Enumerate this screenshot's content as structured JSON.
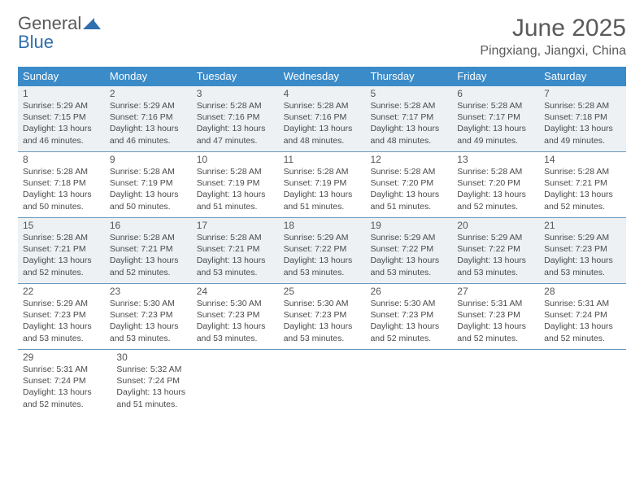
{
  "logo": {
    "text1": "General",
    "text2": "Blue"
  },
  "title": "June 2025",
  "location": "Pingxiang, Jiangxi, China",
  "colors": {
    "header_bg": "#3b8bc8",
    "row_border": "#6a99bd",
    "shaded_bg": "#edf1f4",
    "text_gray": "#5a5a5a",
    "logo_blue": "#2f6fae"
  },
  "day_labels": [
    "Sunday",
    "Monday",
    "Tuesday",
    "Wednesday",
    "Thursday",
    "Friday",
    "Saturday"
  ],
  "weeks": [
    {
      "shaded": true,
      "days": [
        {
          "n": "1",
          "sr": "Sunrise: 5:29 AM",
          "ss": "Sunset: 7:15 PM",
          "d1": "Daylight: 13 hours",
          "d2": "and 46 minutes."
        },
        {
          "n": "2",
          "sr": "Sunrise: 5:29 AM",
          "ss": "Sunset: 7:16 PM",
          "d1": "Daylight: 13 hours",
          "d2": "and 46 minutes."
        },
        {
          "n": "3",
          "sr": "Sunrise: 5:28 AM",
          "ss": "Sunset: 7:16 PM",
          "d1": "Daylight: 13 hours",
          "d2": "and 47 minutes."
        },
        {
          "n": "4",
          "sr": "Sunrise: 5:28 AM",
          "ss": "Sunset: 7:16 PM",
          "d1": "Daylight: 13 hours",
          "d2": "and 48 minutes."
        },
        {
          "n": "5",
          "sr": "Sunrise: 5:28 AM",
          "ss": "Sunset: 7:17 PM",
          "d1": "Daylight: 13 hours",
          "d2": "and 48 minutes."
        },
        {
          "n": "6",
          "sr": "Sunrise: 5:28 AM",
          "ss": "Sunset: 7:17 PM",
          "d1": "Daylight: 13 hours",
          "d2": "and 49 minutes."
        },
        {
          "n": "7",
          "sr": "Sunrise: 5:28 AM",
          "ss": "Sunset: 7:18 PM",
          "d1": "Daylight: 13 hours",
          "d2": "and 49 minutes."
        }
      ]
    },
    {
      "shaded": false,
      "days": [
        {
          "n": "8",
          "sr": "Sunrise: 5:28 AM",
          "ss": "Sunset: 7:18 PM",
          "d1": "Daylight: 13 hours",
          "d2": "and 50 minutes."
        },
        {
          "n": "9",
          "sr": "Sunrise: 5:28 AM",
          "ss": "Sunset: 7:19 PM",
          "d1": "Daylight: 13 hours",
          "d2": "and 50 minutes."
        },
        {
          "n": "10",
          "sr": "Sunrise: 5:28 AM",
          "ss": "Sunset: 7:19 PM",
          "d1": "Daylight: 13 hours",
          "d2": "and 51 minutes."
        },
        {
          "n": "11",
          "sr": "Sunrise: 5:28 AM",
          "ss": "Sunset: 7:19 PM",
          "d1": "Daylight: 13 hours",
          "d2": "and 51 minutes."
        },
        {
          "n": "12",
          "sr": "Sunrise: 5:28 AM",
          "ss": "Sunset: 7:20 PM",
          "d1": "Daylight: 13 hours",
          "d2": "and 51 minutes."
        },
        {
          "n": "13",
          "sr": "Sunrise: 5:28 AM",
          "ss": "Sunset: 7:20 PM",
          "d1": "Daylight: 13 hours",
          "d2": "and 52 minutes."
        },
        {
          "n": "14",
          "sr": "Sunrise: 5:28 AM",
          "ss": "Sunset: 7:21 PM",
          "d1": "Daylight: 13 hours",
          "d2": "and 52 minutes."
        }
      ]
    },
    {
      "shaded": true,
      "days": [
        {
          "n": "15",
          "sr": "Sunrise: 5:28 AM",
          "ss": "Sunset: 7:21 PM",
          "d1": "Daylight: 13 hours",
          "d2": "and 52 minutes."
        },
        {
          "n": "16",
          "sr": "Sunrise: 5:28 AM",
          "ss": "Sunset: 7:21 PM",
          "d1": "Daylight: 13 hours",
          "d2": "and 52 minutes."
        },
        {
          "n": "17",
          "sr": "Sunrise: 5:28 AM",
          "ss": "Sunset: 7:21 PM",
          "d1": "Daylight: 13 hours",
          "d2": "and 53 minutes."
        },
        {
          "n": "18",
          "sr": "Sunrise: 5:29 AM",
          "ss": "Sunset: 7:22 PM",
          "d1": "Daylight: 13 hours",
          "d2": "and 53 minutes."
        },
        {
          "n": "19",
          "sr": "Sunrise: 5:29 AM",
          "ss": "Sunset: 7:22 PM",
          "d1": "Daylight: 13 hours",
          "d2": "and 53 minutes."
        },
        {
          "n": "20",
          "sr": "Sunrise: 5:29 AM",
          "ss": "Sunset: 7:22 PM",
          "d1": "Daylight: 13 hours",
          "d2": "and 53 minutes."
        },
        {
          "n": "21",
          "sr": "Sunrise: 5:29 AM",
          "ss": "Sunset: 7:23 PM",
          "d1": "Daylight: 13 hours",
          "d2": "and 53 minutes."
        }
      ]
    },
    {
      "shaded": false,
      "days": [
        {
          "n": "22",
          "sr": "Sunrise: 5:29 AM",
          "ss": "Sunset: 7:23 PM",
          "d1": "Daylight: 13 hours",
          "d2": "and 53 minutes."
        },
        {
          "n": "23",
          "sr": "Sunrise: 5:30 AM",
          "ss": "Sunset: 7:23 PM",
          "d1": "Daylight: 13 hours",
          "d2": "and 53 minutes."
        },
        {
          "n": "24",
          "sr": "Sunrise: 5:30 AM",
          "ss": "Sunset: 7:23 PM",
          "d1": "Daylight: 13 hours",
          "d2": "and 53 minutes."
        },
        {
          "n": "25",
          "sr": "Sunrise: 5:30 AM",
          "ss": "Sunset: 7:23 PM",
          "d1": "Daylight: 13 hours",
          "d2": "and 53 minutes."
        },
        {
          "n": "26",
          "sr": "Sunrise: 5:30 AM",
          "ss": "Sunset: 7:23 PM",
          "d1": "Daylight: 13 hours",
          "d2": "and 52 minutes."
        },
        {
          "n": "27",
          "sr": "Sunrise: 5:31 AM",
          "ss": "Sunset: 7:23 PM",
          "d1": "Daylight: 13 hours",
          "d2": "and 52 minutes."
        },
        {
          "n": "28",
          "sr": "Sunrise: 5:31 AM",
          "ss": "Sunset: 7:24 PM",
          "d1": "Daylight: 13 hours",
          "d2": "and 52 minutes."
        }
      ]
    },
    {
      "shaded": false,
      "days": [
        {
          "n": "29",
          "sr": "Sunrise: 5:31 AM",
          "ss": "Sunset: 7:24 PM",
          "d1": "Daylight: 13 hours",
          "d2": "and 52 minutes."
        },
        {
          "n": "30",
          "sr": "Sunrise: 5:32 AM",
          "ss": "Sunset: 7:24 PM",
          "d1": "Daylight: 13 hours",
          "d2": "and 51 minutes."
        }
      ]
    }
  ]
}
